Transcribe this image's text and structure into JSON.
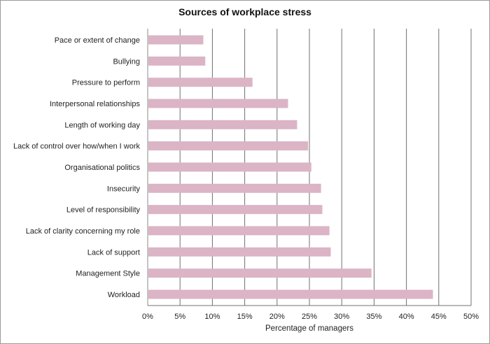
{
  "chart_data": {
    "type": "bar",
    "orientation": "horizontal",
    "title": "Sources of workplace stress",
    "xlabel": "Percentage of managers",
    "ylabel": "",
    "xlim": [
      0,
      50
    ],
    "x_ticks": [
      "0%",
      "5%",
      "10%",
      "15%",
      "20%",
      "25%",
      "30%",
      "35%",
      "40%",
      "45%",
      "50%"
    ],
    "grid": "vertical",
    "legend": "none",
    "bar_color": "#dbb4c5",
    "categories": [
      "Pace or extent of change",
      "Bullying",
      "Pressure to perform",
      "Interpersonal relationships",
      "Length of working day",
      "Lack of control over how/when I work",
      "Organisational politics",
      "Insecurity",
      "Level of responsibility",
      "Lack of clarity concerning my role",
      "Lack of support",
      "Management Style",
      "Workload"
    ],
    "values": [
      8.6,
      8.9,
      16.2,
      21.7,
      23.1,
      24.8,
      25.3,
      26.8,
      27.0,
      28.1,
      28.3,
      34.6,
      44.1
    ]
  }
}
